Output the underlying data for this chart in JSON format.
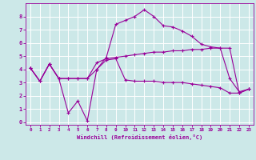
{
  "background_color": "#cce8e8",
  "grid_color": "#aadddd",
  "line_color": "#990099",
  "xlabel": "Windchill (Refroidissement éolien,°C)",
  "xlim": [
    -0.5,
    23.5
  ],
  "ylim": [
    -0.2,
    9.0
  ],
  "yticks": [
    0,
    1,
    2,
    3,
    4,
    5,
    6,
    7,
    8
  ],
  "xticks": [
    0,
    1,
    2,
    3,
    4,
    5,
    6,
    7,
    8,
    9,
    10,
    11,
    12,
    13,
    14,
    15,
    16,
    17,
    18,
    19,
    20,
    21,
    22,
    23
  ],
  "line1_x": [
    0,
    1,
    2,
    3,
    4,
    5,
    6,
    7,
    8,
    9,
    10,
    11,
    12,
    13,
    14,
    15,
    16,
    17,
    18,
    19,
    20,
    21,
    22,
    23
  ],
  "line1_y": [
    4.1,
    3.1,
    4.4,
    3.3,
    0.7,
    1.6,
    0.1,
    4.0,
    4.9,
    7.4,
    7.7,
    8.0,
    8.5,
    8.0,
    7.3,
    7.2,
    6.9,
    6.5,
    5.9,
    5.7,
    5.6,
    3.3,
    2.3,
    2.5
  ],
  "line2_x": [
    0,
    1,
    2,
    3,
    4,
    5,
    6,
    7,
    8,
    9,
    10,
    11,
    12,
    13,
    14,
    15,
    16,
    17,
    18,
    19,
    20,
    21,
    22,
    23
  ],
  "line2_y": [
    4.1,
    3.1,
    4.4,
    3.3,
    3.3,
    3.3,
    3.3,
    4.5,
    4.8,
    4.9,
    5.0,
    5.1,
    5.2,
    5.3,
    5.3,
    5.4,
    5.4,
    5.5,
    5.5,
    5.6,
    5.6,
    5.6,
    2.2,
    2.5
  ],
  "line3_x": [
    0,
    1,
    2,
    3,
    4,
    5,
    6,
    7,
    8,
    9,
    10,
    11,
    12,
    13,
    14,
    15,
    16,
    17,
    18,
    19,
    20,
    21,
    22,
    23
  ],
  "line3_y": [
    4.1,
    3.1,
    4.4,
    3.3,
    3.3,
    3.3,
    3.3,
    4.0,
    4.7,
    4.8,
    3.2,
    3.1,
    3.1,
    3.1,
    3.0,
    3.0,
    3.0,
    2.9,
    2.8,
    2.7,
    2.6,
    2.2,
    2.2,
    2.5
  ]
}
